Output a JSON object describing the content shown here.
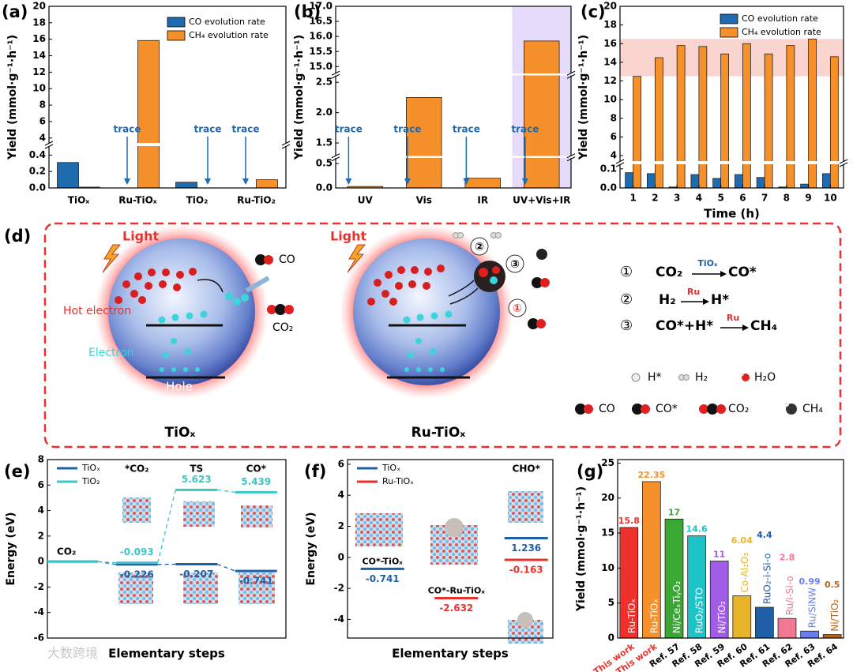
{
  "chart_data": [
    {
      "panel": "(a)",
      "type": "bar",
      "ylabel": "Yield (mmol·g⁻¹·h⁻¹)",
      "categories": [
        "TiOₓ",
        "Ru-TiOₓ",
        "TiO₂",
        "Ru-TiO₂"
      ],
      "series": [
        {
          "name": "CO evolution rate",
          "color": "#1f6bb0",
          "values": [
            0.31,
            0,
            0.07,
            0
          ]
        },
        {
          "name": "CH₄ evolution rate",
          "color": "#f5902a",
          "values": [
            0.01,
            15.85,
            0,
            0.1
          ]
        }
      ],
      "ylim": [
        0,
        20
      ],
      "ybreaks": [
        [
          0.5,
          3.5
        ]
      ],
      "yticks": [
        {
          "value": 0,
          "label": "0.0"
        },
        0.2,
        0.4,
        4,
        6,
        8,
        10,
        12,
        14,
        16,
        18,
        20
      ],
      "annotations": [
        {
          "text": "trace",
          "category": "Ru-TiOₓ",
          "series": "CO evolution rate"
        },
        {
          "text": "trace",
          "category": "TiO₂",
          "series": "CH₄ evolution rate"
        },
        {
          "text": "trace",
          "category": "Ru-TiO₂",
          "series": "CO evolution rate"
        }
      ],
      "legend": "top-right"
    },
    {
      "panel": "(b)",
      "type": "bar",
      "ylabel": "Yield (mmol·g⁻¹·h⁻¹)",
      "categories": [
        "UV",
        "Vis",
        "IR",
        "UV+Vis+IR"
      ],
      "values": [
        0.03,
        2.25,
        0.2,
        15.85
      ],
      "color": "#f5902a",
      "ylim": [
        0,
        17
      ],
      "ybreaks": [
        [
          0.6,
          1.3
        ],
        [
          2.6,
          14.8
        ]
      ],
      "yticks": [
        {
          "value": 0,
          "label": "0.0"
        },
        0.5,
        1.5,
        {
          "value": 2,
          "label": "2.0"
        },
        2.5,
        {
          "value": 15,
          "label": "15.0"
        },
        15.5,
        {
          "value": 16,
          "label": "16.0"
        },
        16.5,
        {
          "value": 17,
          "label": "17.0"
        }
      ],
      "highlight": "UV+Vis+IR",
      "annotations": [
        {
          "text": "trace",
          "category": "UV"
        },
        {
          "text": "trace",
          "category": "Vis"
        },
        {
          "text": "trace",
          "category": "IR"
        },
        {
          "text": "trace",
          "category": "UV+Vis+IR"
        }
      ]
    },
    {
      "panel": "(c)",
      "type": "bar",
      "ylabel": "Yield (mmol·g⁻¹·h⁻¹)",
      "xlabel": "Time (h)",
      "x": [
        1,
        2,
        3,
        4,
        5,
        6,
        7,
        8,
        9,
        10
      ],
      "xlim": [
        0.4,
        10.6
      ],
      "xticks": [
        1,
        2,
        3,
        4,
        5,
        6,
        7,
        8,
        9,
        10
      ],
      "series": [
        {
          "name": "CO evolution rate",
          "color": "#1f6bb0",
          "values": [
            0.08,
            0.075,
            0.005,
            0.07,
            0.05,
            0.07,
            0.055,
            0.005,
            0.02,
            0.075
          ]
        },
        {
          "name": "CH₄ evolution rate",
          "color": "#f5902a",
          "values": [
            12.5,
            14.5,
            15.8,
            15.7,
            14.9,
            16.0,
            14.9,
            15.8,
            16.5,
            14.6
          ]
        }
      ],
      "ylim": [
        0,
        20
      ],
      "ybreaks": [
        [
          0.12,
          3.5
        ]
      ],
      "yticks": [
        {
          "value": 0,
          "label": "0.0"
        },
        0.1,
        4,
        6,
        8,
        10,
        12,
        14,
        16,
        18,
        20
      ],
      "yband": [
        12.5,
        16.5
      ],
      "legend": "top-right"
    },
    {
      "panel": "(e)",
      "type": "energy",
      "ylabel": "Energy (eV)",
      "xlabel": "Elementary steps",
      "categories": [
        "CO₂",
        "*CO₂",
        "TS",
        "CO*"
      ],
      "series": [
        {
          "name": "TiOₓ",
          "color": "#1f5fa8",
          "values": [
            0,
            -0.226,
            -0.207,
            -0.741
          ],
          "value_labels": [
            null,
            "-0.226",
            "-0.207",
            "-0.741"
          ]
        },
        {
          "name": "TiO₂",
          "color": "#3cc6c6",
          "values": [
            0,
            -0.093,
            5.623,
            5.439
          ],
          "value_labels": [
            null,
            "-0.093",
            "5.623",
            "5.439"
          ]
        }
      ],
      "ylim": [
        -6,
        8
      ],
      "yticks": [
        -6,
        -4,
        -2,
        0,
        2,
        4,
        6,
        8
      ],
      "connectors": true,
      "legend": "top-left"
    },
    {
      "panel": "(f)",
      "type": "energy",
      "ylabel": "Energy (eV)",
      "xlabel": "Elementary steps",
      "categories": [
        null,
        "CHO*"
      ],
      "series": [
        {
          "name": "TiOₓ",
          "color": "#1f5fa8",
          "values": [
            -0.741,
            1.236
          ],
          "level_labels": [
            "CO*-TiOₓ",
            null
          ]
        },
        {
          "name": "Ru-TiOₓ",
          "color": "#e8322d",
          "values": [
            -2.632,
            -0.163
          ],
          "level_labels": [
            "CO*-Ru-TiOₓ",
            null
          ]
        }
      ],
      "ylim": [
        -5.2,
        6.3
      ],
      "yticks": [
        -4,
        -2,
        0,
        2,
        4,
        6
      ],
      "legend": "top-left"
    },
    {
      "panel": "(g)",
      "type": "bar",
      "ylabel": "Yield (mmol·g⁻¹·h⁻¹)",
      "categories": [
        "Ru-TiOₓ",
        "Ru-TiOₓ",
        "Ni/CeₓTiᵧO₂",
        "RuO₂/STO",
        "Ni/TiO₂",
        "Co-Al₂O₃",
        "RuO₂-i-Si-o",
        "Ru/i-Si-o",
        "Ru/SiNW",
        "Ni/TiO₂"
      ],
      "values": [
        15.8,
        22.35,
        17,
        14.6,
        11,
        6.04,
        4.4,
        2.8,
        0.99,
        0.5
      ],
      "colors": [
        "#f0302a",
        "#f5902a",
        "#3aa832",
        "#1ec3c8",
        "#a15de8",
        "#e8b42a",
        "#1f5fa8",
        "#f07890",
        "#6b7ef0",
        "#b5651d"
      ],
      "sublabels": [
        {
          "text": "This work",
          "color": "#e8322d"
        },
        {
          "text": "This work",
          "color": "#e8322d"
        },
        {
          "text": "Ref. 57",
          "color": "#000000"
        },
        {
          "text": "Ref. 58",
          "color": "#000000"
        },
        {
          "text": "Ref. 59",
          "color": "#000000"
        },
        {
          "text": "Ref. 60",
          "color": "#000000"
        },
        {
          "text": "Ref. 61",
          "color": "#000000"
        },
        {
          "text": "Ref. 62",
          "color": "#000000"
        },
        {
          "text": "Ref. 63",
          "color": "#000000"
        },
        {
          "text": "Ref. 64",
          "color": "#000000"
        }
      ],
      "ylim": [
        0,
        25.5
      ],
      "yticks": [
        0,
        5,
        10,
        15,
        20,
        25
      ],
      "show_values": true
    }
  ],
  "diagram": {
    "panel": "(d)",
    "left": {
      "light": "Light",
      "hot_electron": "Hot electron",
      "electron": "Electron",
      "hole": "Hole",
      "product": "CO",
      "reactant": "CO₂",
      "label": "TiOₓ"
    },
    "right": {
      "light": "Light",
      "steps": [
        "②",
        "③",
        "①"
      ],
      "label": "Ru-TiOₓ"
    },
    "reactions": [
      {
        "number": "①",
        "reactant": "CO₂",
        "catalyst": "TiOₓ",
        "product": "CO*"
      },
      {
        "number": "②",
        "reactant": "H₂",
        "catalyst": "Ru",
        "product": "H*"
      },
      {
        "number": "③",
        "reactant": "CO*+H*",
        "catalyst": "Ru",
        "product": "CH₄"
      }
    ],
    "legend": [
      "H*",
      "H₂",
      "H₂O",
      "CO",
      "CO*",
      "CO₂",
      "CH₄"
    ]
  },
  "watermark": "大数跨境"
}
